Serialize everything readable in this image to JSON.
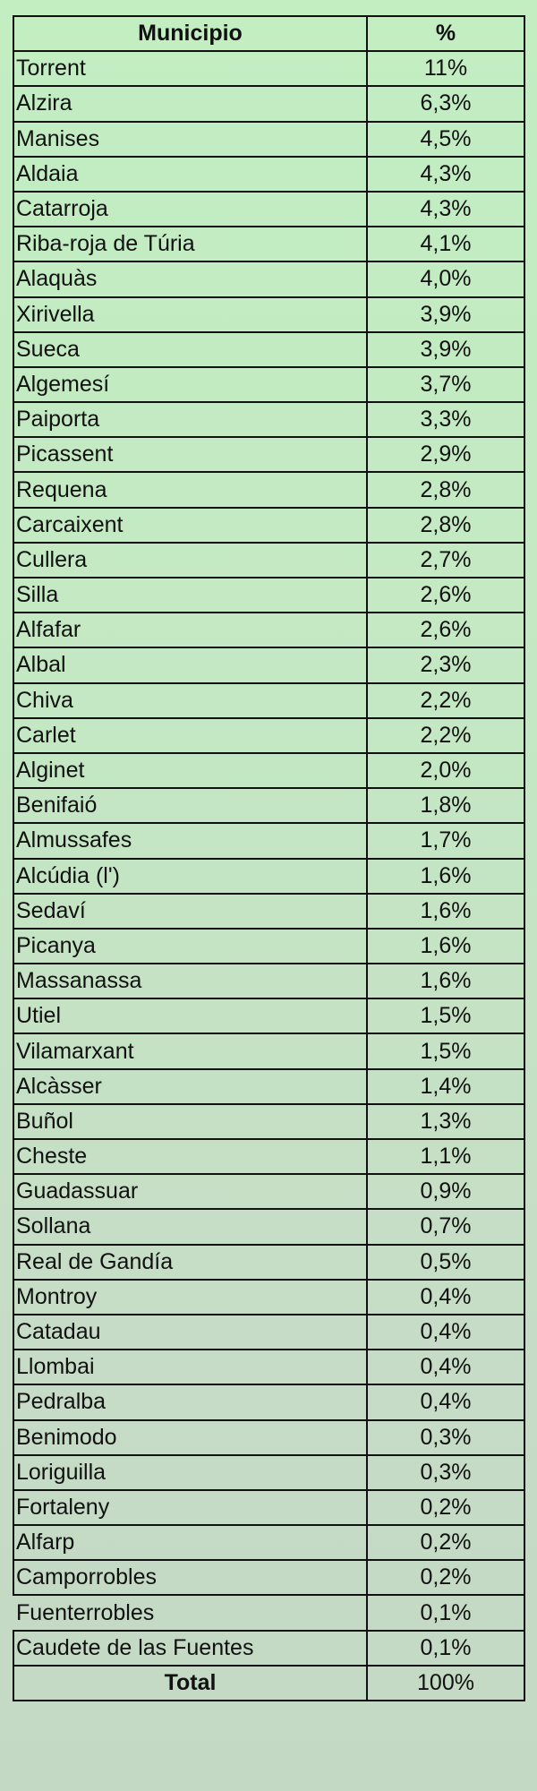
{
  "table": {
    "headers": [
      "Municipio",
      "%"
    ],
    "rows": [
      [
        "Torrent",
        "11%"
      ],
      [
        "Alzira",
        "6,3%"
      ],
      [
        "Manises",
        "4,5%"
      ],
      [
        "Aldaia",
        "4,3%"
      ],
      [
        "Catarroja",
        "4,3%"
      ],
      [
        "Riba-roja de Túria",
        "4,1%"
      ],
      [
        "Alaquàs",
        "4,0%"
      ],
      [
        "Xirivella",
        "3,9%"
      ],
      [
        "Sueca",
        "3,9%"
      ],
      [
        "Algemesí",
        "3,7%"
      ],
      [
        "Paiporta",
        "3,3%"
      ],
      [
        "Picassent",
        "2,9%"
      ],
      [
        "Requena",
        "2,8%"
      ],
      [
        "Carcaixent",
        "2,8%"
      ],
      [
        "Cullera",
        "2,7%"
      ],
      [
        "Silla",
        "2,6%"
      ],
      [
        "Alfafar",
        "2,6%"
      ],
      [
        "Albal",
        "2,3%"
      ],
      [
        "Chiva",
        "2,2%"
      ],
      [
        "Carlet",
        "2,2%"
      ],
      [
        "Alginet",
        "2,0%"
      ],
      [
        "Benifaió",
        "1,8%"
      ],
      [
        "Almussafes",
        "1,7%"
      ],
      [
        "Alcúdia (l')",
        "1,6%"
      ],
      [
        "Sedaví",
        "1,6%"
      ],
      [
        "Picanya",
        "1,6%"
      ],
      [
        "Massanassa",
        "1,6%"
      ],
      [
        "Utiel",
        "1,5%"
      ],
      [
        "Vilamarxant",
        "1,5%"
      ],
      [
        "Alcàsser",
        "1,4%"
      ],
      [
        "Buñol",
        "1,3%"
      ],
      [
        "Cheste",
        "1,1%"
      ],
      [
        "Guadassuar",
        "0,9%"
      ],
      [
        "Sollana",
        "0,7%"
      ],
      [
        "Real de Gandía",
        "0,5%"
      ],
      [
        "Montroy",
        "0,4%"
      ],
      [
        "Catadau",
        "0,4%"
      ],
      [
        "Llombai",
        "0,4%"
      ],
      [
        "Pedralba",
        "0,4%"
      ],
      [
        "Benimodo",
        "0,3%"
      ],
      [
        "Loriguilla",
        "0,3%"
      ],
      [
        "Fortaleny",
        "0,2%"
      ],
      [
        "Alfarp",
        "0,2%"
      ],
      [
        "Camporrobles",
        "0,2%"
      ],
      [
        "Fuenterrobles",
        "0,1%"
      ],
      [
        "Caudete de las Fuentes",
        "0,1%"
      ]
    ],
    "total": {
      "label": "Total",
      "value": "100%"
    }
  }
}
